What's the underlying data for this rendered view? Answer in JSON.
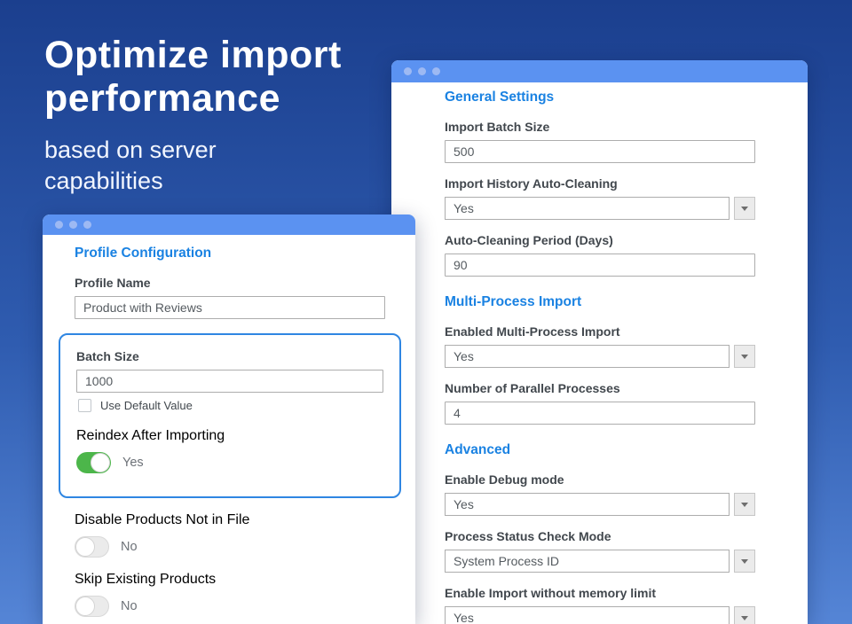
{
  "colors": {
    "background_top": "#1b3f8e",
    "background_bottom": "#5585d6",
    "window_bar": "#5b92f1",
    "accent_heading": "#1a82e2",
    "toggle_on": "#4cb64a",
    "highlight_border": "#2f86e2"
  },
  "hero": {
    "title_line1": "Optimize import",
    "title_line2": "performance",
    "subtitle_line1": "based on server",
    "subtitle_line2": "capabilities"
  },
  "left_card": {
    "section_title": "Profile Configuration",
    "profile_name": {
      "label": "Profile Name",
      "value": "Product with Reviews"
    },
    "batch_size": {
      "label": "Batch Size",
      "value": "1000"
    },
    "use_default": {
      "label": "Use Default Value",
      "checked": false
    },
    "reindex": {
      "label": "Reindex After Importing",
      "state": "Yes",
      "on": true
    },
    "disable_products": {
      "label": "Disable Products Not in File",
      "state": "No",
      "on": false
    },
    "skip_existing": {
      "label": "Skip Existing Products",
      "state": "No",
      "on": false
    }
  },
  "right_card": {
    "general_title": "General Settings",
    "import_batch_size": {
      "label": "Import Batch Size",
      "value": "500"
    },
    "history_cleaning": {
      "label": "Import History Auto-Cleaning",
      "value": "Yes"
    },
    "cleaning_period": {
      "label": "Auto-Cleaning Period (Days)",
      "value": "90"
    },
    "multiprocess_title": "Multi-Process Import",
    "enabled_multiprocess": {
      "label": "Enabled Multi-Process Import",
      "value": "Yes"
    },
    "parallel_processes": {
      "label": "Number of Parallel Processes",
      "value": "4"
    },
    "advanced_title": "Advanced",
    "debug_mode": {
      "label": "Enable Debug mode",
      "value": "Yes"
    },
    "status_check_mode": {
      "label": "Process Status Check Mode",
      "value": "System Process ID"
    },
    "memory_limit": {
      "label": "Enable Import without memory limit",
      "value": "Yes"
    }
  }
}
